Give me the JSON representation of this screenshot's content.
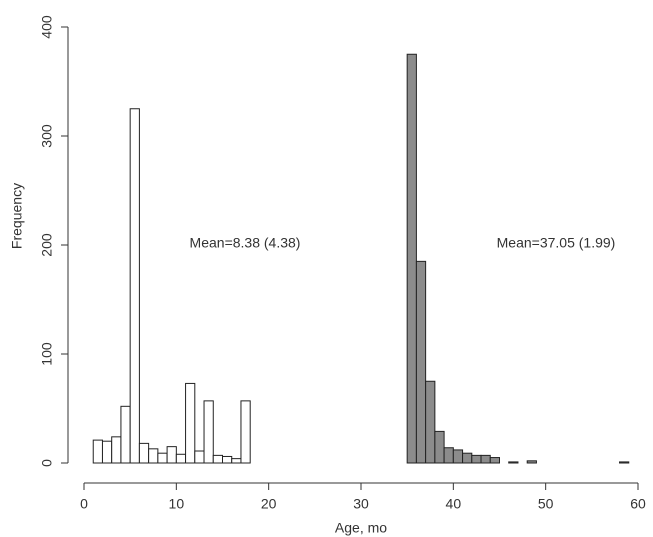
{
  "chart_data": {
    "type": "histogram",
    "x_label": "Age, mo",
    "y_label": "Frequency",
    "xlim": [
      0,
      60
    ],
    "xticks": [
      0,
      10,
      20,
      30,
      40,
      50,
      60
    ],
    "ylim": [
      0,
      400
    ],
    "yticks": [
      0,
      100,
      200,
      300,
      400
    ],
    "series": [
      {
        "color": "#ffffff",
        "bins": [
          1,
          2,
          3,
          4,
          5,
          6,
          7,
          8,
          9,
          10,
          11,
          12,
          13,
          14,
          15,
          16,
          17,
          18
        ],
        "values": [
          21,
          20,
          24,
          52,
          325,
          18,
          13,
          9,
          15,
          8,
          73,
          11,
          57,
          7,
          6,
          4,
          57
        ]
      },
      {
        "color": "#8c8c8c",
        "bins": [
          35,
          36,
          37,
          38,
          39,
          40,
          41,
          42,
          43,
          44,
          45,
          46,
          47,
          48,
          49,
          50,
          51,
          52,
          53,
          54,
          55,
          56,
          57,
          58,
          59
        ],
        "values": [
          375,
          185,
          75,
          29,
          14,
          12,
          9,
          7,
          7,
          5,
          0,
          1,
          0,
          2,
          0,
          0,
          0,
          0,
          0,
          0,
          0,
          0,
          0,
          1
        ]
      }
    ],
    "annotations": [
      "Mean=8.38 (4.38)",
      "Mean=37.05 (1.99)"
    ]
  }
}
